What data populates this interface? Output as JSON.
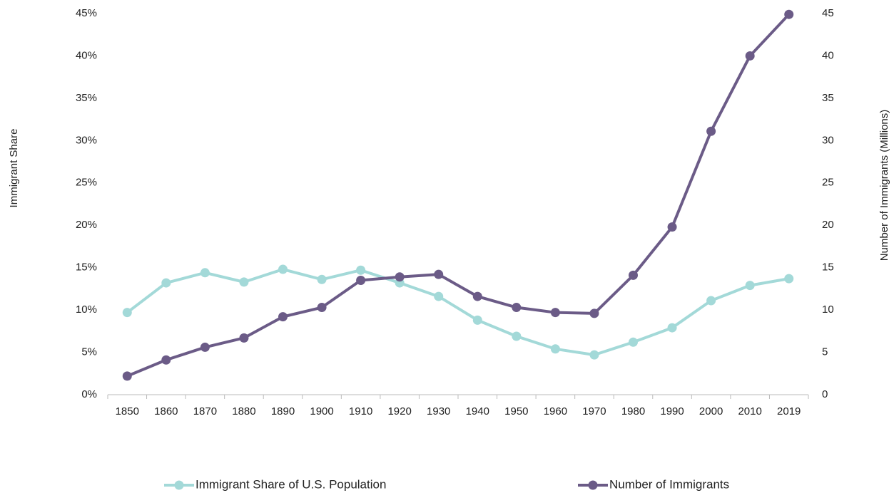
{
  "chart_data": {
    "type": "line",
    "categories": [
      "1850",
      "1860",
      "1870",
      "1880",
      "1890",
      "1900",
      "1910",
      "1920",
      "1930",
      "1940",
      "1950",
      "1960",
      "1970",
      "1980",
      "1990",
      "2000",
      "2010",
      "2019"
    ],
    "series": [
      {
        "name": "Immigrant Share of U.S. Population",
        "color": "#a3d9d8",
        "values": [
          9.7,
          13.2,
          14.4,
          13.3,
          14.8,
          13.6,
          14.7,
          13.2,
          11.6,
          8.8,
          6.9,
          5.4,
          4.7,
          6.2,
          7.9,
          11.1,
          12.9,
          13.7
        ]
      },
      {
        "name": "Number of Immigrants",
        "color": "#6b5b87",
        "axis": "y2",
        "values": [
          2.2,
          4.1,
          5.6,
          6.7,
          9.2,
          10.3,
          13.5,
          13.9,
          14.2,
          11.6,
          10.3,
          9.7,
          9.6,
          14.1,
          19.8,
          31.1,
          40.0,
          44.9
        ]
      }
    ],
    "y_label": "Immigrant Share",
    "y2_label": "Number of Immigrants (Millions)",
    "ylim": [
      0,
      45
    ],
    "yticks": [
      {
        "value": 0,
        "label": "0%"
      },
      {
        "value": 5,
        "label": "5%"
      },
      {
        "value": 10,
        "label": "10%"
      },
      {
        "value": 15,
        "label": "15%"
      },
      {
        "value": 20,
        "label": "20%"
      },
      {
        "value": 25,
        "label": "25%"
      },
      {
        "value": 30,
        "label": "30%"
      },
      {
        "value": 35,
        "label": "35%"
      },
      {
        "value": 40,
        "label": "40%"
      },
      {
        "value": 45,
        "label": "45%"
      }
    ],
    "y2lim": [
      0,
      45
    ],
    "y2ticks": [
      0,
      5,
      10,
      15,
      20,
      25,
      30,
      35,
      40,
      45
    ],
    "legend": "bottom"
  }
}
